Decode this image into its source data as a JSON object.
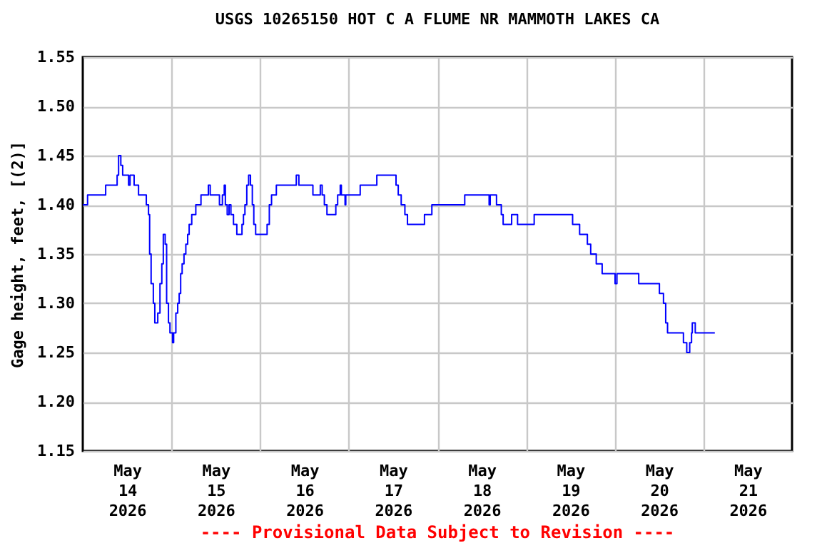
{
  "chart_data": {
    "type": "step",
    "title": "USGS 10265150 HOT C A FLUME NR MAMMOTH LAKES CA",
    "ylabel": "Gage height, feet, [(2)]",
    "annotations": [
      "---- Provisional Data Subject to Revision ----"
    ],
    "grid": true,
    "legend": false,
    "xlim": [
      "2026-05-14T00:00",
      "2026-05-22T00:00"
    ],
    "xticks": [
      {
        "value": "2026-05-14T12:00",
        "label": "May 14 2026"
      },
      {
        "value": "2026-05-15T00:00",
        "label": null
      },
      {
        "value": "2026-05-15T12:00",
        "label": "May 15 2026"
      },
      {
        "value": "2026-05-16T00:00",
        "label": null
      },
      {
        "value": "2026-05-16T12:00",
        "label": "May 16 2026"
      },
      {
        "value": "2026-05-17T00:00",
        "label": null
      },
      {
        "value": "2026-05-17T12:00",
        "label": "May 17 2026"
      },
      {
        "value": "2026-05-18T00:00",
        "label": null
      },
      {
        "value": "2026-05-18T12:00",
        "label": "May 18 2026"
      },
      {
        "value": "2026-05-19T00:00",
        "label": null
      },
      {
        "value": "2026-05-19T12:00",
        "label": "May 19 2026"
      },
      {
        "value": "2026-05-20T00:00",
        "label": null
      },
      {
        "value": "2026-05-20T12:00",
        "label": "May 20 2026"
      },
      {
        "value": "2026-05-21T00:00",
        "label": null
      },
      {
        "value": "2026-05-21T12:00",
        "label": "May 21 2026"
      }
    ],
    "ylim": [
      1.15,
      1.55
    ],
    "yticks": [
      {
        "value": 1.15,
        "label": "1.15"
      },
      {
        "value": 1.2,
        "label": "1.20"
      },
      {
        "value": 1.25,
        "label": "1.25"
      },
      {
        "value": 1.3,
        "label": "1.30"
      },
      {
        "value": 1.35,
        "label": "1.35"
      },
      {
        "value": 1.4,
        "label": "1.40"
      },
      {
        "value": 1.45,
        "label": "1.45"
      },
      {
        "value": 1.5,
        "label": "1.50"
      },
      {
        "value": 1.55,
        "label": "1.55"
      }
    ],
    "series": [
      {
        "color": "#0000ff",
        "x": [
          "2026-05-14T00:00",
          "2026-05-14T01:18",
          "2026-05-14T06:12",
          "2026-05-14T09:18",
          "2026-05-14T09:42",
          "2026-05-14T10:18",
          "2026-05-14T10:48",
          "2026-05-14T12:24",
          "2026-05-14T12:48",
          "2026-05-14T13:54",
          "2026-05-14T15:06",
          "2026-05-14T17:12",
          "2026-05-14T17:48",
          "2026-05-14T18:06",
          "2026-05-14T18:30",
          "2026-05-14T19:06",
          "2026-05-14T19:30",
          "2026-05-14T20:18",
          "2026-05-14T20:54",
          "2026-05-14T21:24",
          "2026-05-14T21:48",
          "2026-05-14T22:18",
          "2026-05-14T22:42",
          "2026-05-14T23:12",
          "2026-05-14T23:36",
          "2026-05-15T00:18",
          "2026-05-15T00:36",
          "2026-05-15T01:12",
          "2026-05-15T01:42",
          "2026-05-15T02:06",
          "2026-05-15T02:30",
          "2026-05-15T02:54",
          "2026-05-15T03:24",
          "2026-05-15T03:54",
          "2026-05-15T04:24",
          "2026-05-15T04:48",
          "2026-05-15T05:30",
          "2026-05-15T06:36",
          "2026-05-15T08:00",
          "2026-05-15T10:00",
          "2026-05-15T10:30",
          "2026-05-15T13:00",
          "2026-05-15T13:48",
          "2026-05-15T14:18",
          "2026-05-15T14:36",
          "2026-05-15T15:06",
          "2026-05-15T15:36",
          "2026-05-15T16:06",
          "2026-05-15T16:48",
          "2026-05-15T17:42",
          "2026-05-15T19:06",
          "2026-05-15T19:30",
          "2026-05-15T19:54",
          "2026-05-15T20:24",
          "2026-05-15T20:54",
          "2026-05-15T21:24",
          "2026-05-15T21:54",
          "2026-05-15T22:18",
          "2026-05-15T22:48",
          "2026-05-16T01:54",
          "2026-05-16T02:30",
          "2026-05-16T03:06",
          "2026-05-16T04:24",
          "2026-05-16T09:48",
          "2026-05-16T10:30",
          "2026-05-16T14:18",
          "2026-05-16T16:18",
          "2026-05-16T16:48",
          "2026-05-16T17:24",
          "2026-05-16T18:06",
          "2026-05-16T20:30",
          "2026-05-16T21:00",
          "2026-05-16T21:42",
          "2026-05-16T22:00",
          "2026-05-16T23:00",
          "2026-05-16T23:12",
          "2026-05-17T03:06",
          "2026-05-17T07:36",
          "2026-05-17T12:48",
          "2026-05-17T13:24",
          "2026-05-17T14:12",
          "2026-05-17T15:12",
          "2026-05-17T15:54",
          "2026-05-17T20:30",
          "2026-05-17T22:30",
          "2026-05-18T07:24",
          "2026-05-18T14:00",
          "2026-05-18T14:18",
          "2026-05-18T16:00",
          "2026-05-18T17:18",
          "2026-05-18T17:48",
          "2026-05-18T20:06",
          "2026-05-18T21:42",
          "2026-05-19T02:12",
          "2026-05-19T12:36",
          "2026-05-19T14:30",
          "2026-05-19T16:36",
          "2026-05-19T17:30",
          "2026-05-19T19:00",
          "2026-05-19T20:36",
          "2026-05-20T00:06",
          "2026-05-20T00:36",
          "2026-05-20T06:30",
          "2026-05-20T12:06",
          "2026-05-20T13:12",
          "2026-05-20T13:48",
          "2026-05-20T14:18",
          "2026-05-20T18:36",
          "2026-05-20T19:30",
          "2026-05-20T20:18",
          "2026-05-20T20:48",
          "2026-05-20T21:00",
          "2026-05-20T21:48",
          "2026-05-21T03:06"
        ],
        "values": [
          1.4,
          1.41,
          1.42,
          1.43,
          1.45,
          1.44,
          1.43,
          1.42,
          1.43,
          1.42,
          1.41,
          1.4,
          1.39,
          1.35,
          1.32,
          1.3,
          1.28,
          1.29,
          1.32,
          1.34,
          1.37,
          1.36,
          1.3,
          1.28,
          1.27,
          1.26,
          1.27,
          1.29,
          1.3,
          1.31,
          1.33,
          1.34,
          1.35,
          1.36,
          1.37,
          1.38,
          1.39,
          1.4,
          1.41,
          1.42,
          1.41,
          1.4,
          1.41,
          1.42,
          1.4,
          1.39,
          1.4,
          1.39,
          1.38,
          1.37,
          1.38,
          1.39,
          1.4,
          1.42,
          1.43,
          1.42,
          1.4,
          1.38,
          1.37,
          1.38,
          1.4,
          1.41,
          1.42,
          1.43,
          1.42,
          1.41,
          1.42,
          1.41,
          1.4,
          1.39,
          1.4,
          1.41,
          1.42,
          1.41,
          1.4,
          1.41,
          1.42,
          1.43,
          1.42,
          1.41,
          1.4,
          1.39,
          1.38,
          1.39,
          1.4,
          1.41,
          1.4,
          1.41,
          1.4,
          1.39,
          1.38,
          1.39,
          1.38,
          1.39,
          1.38,
          1.37,
          1.36,
          1.35,
          1.34,
          1.33,
          1.32,
          1.33,
          1.32,
          1.31,
          1.3,
          1.28,
          1.27,
          1.26,
          1.25,
          1.26,
          1.27,
          1.28,
          1.27,
          1.27
        ]
      }
    ]
  }
}
